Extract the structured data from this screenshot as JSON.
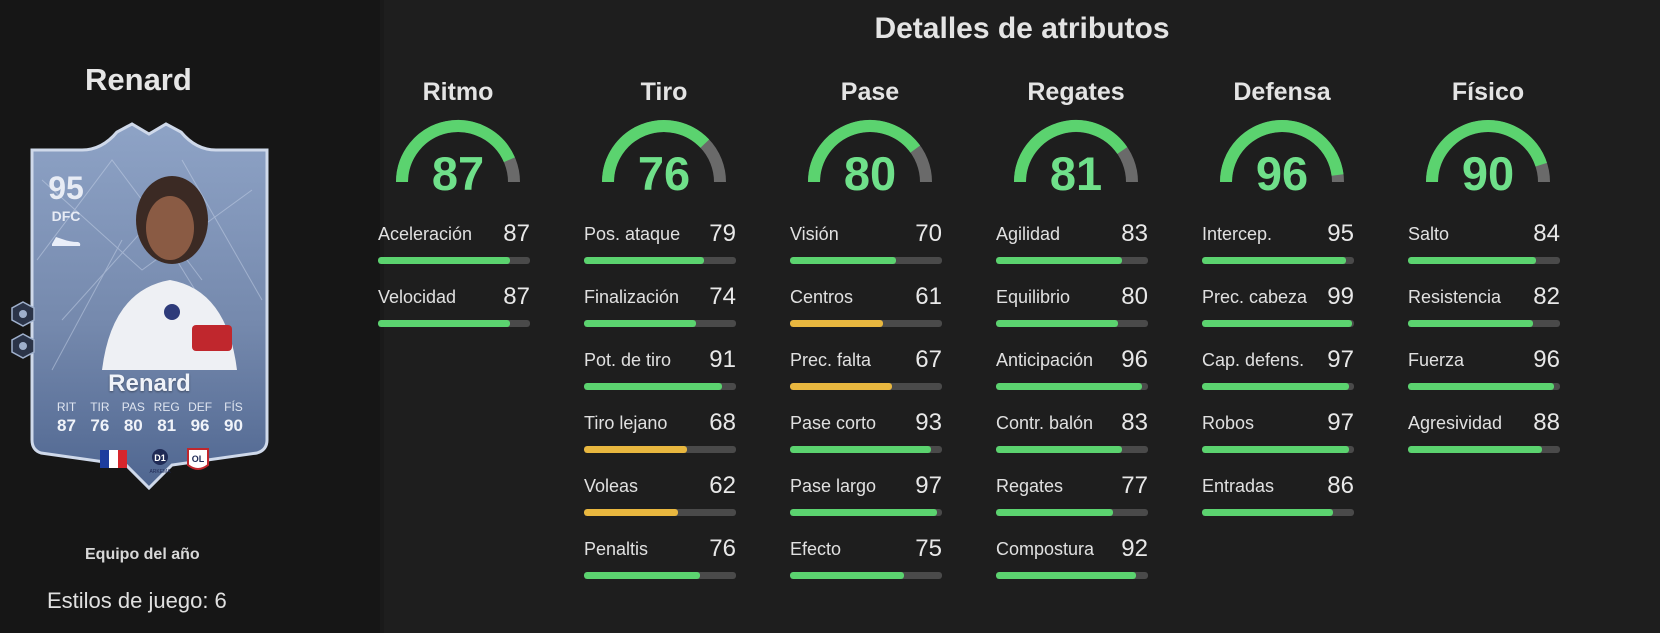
{
  "player": {
    "name": "Renard",
    "card": {
      "rating": "95",
      "position": "DFC",
      "name": "Renard",
      "stats": [
        {
          "label": "RIT",
          "value": "87"
        },
        {
          "label": "TIR",
          "value": "76"
        },
        {
          "label": "PAS",
          "value": "80"
        },
        {
          "label": "REG",
          "value": "81"
        },
        {
          "label": "DEF",
          "value": "96"
        },
        {
          "label": "FÍS",
          "value": "90"
        }
      ],
      "league_badge": "D1",
      "league_sub": "ARKEMA",
      "club_badge": "OL",
      "card_color": "#7d93b7"
    },
    "program": "Equipo del año",
    "playstyles": "Estilos de juego: 6"
  },
  "main_title": "Detalles de atributos",
  "colors": {
    "high": "#5bd36f",
    "mid": "#e8b73f",
    "track": "#4a4a4a"
  },
  "categories": [
    {
      "name": "Ritmo",
      "value": 87,
      "attributes": [
        {
          "name": "Aceleración",
          "value": 87
        },
        {
          "name": "Velocidad",
          "value": 87
        }
      ]
    },
    {
      "name": "Tiro",
      "value": 76,
      "attributes": [
        {
          "name": "Pos. ataque",
          "value": 79
        },
        {
          "name": "Finalización",
          "value": 74
        },
        {
          "name": "Pot. de tiro",
          "value": 91
        },
        {
          "name": "Tiro lejano",
          "value": 68
        },
        {
          "name": "Voleas",
          "value": 62
        },
        {
          "name": "Penaltis",
          "value": 76
        }
      ]
    },
    {
      "name": "Pase",
      "value": 80,
      "attributes": [
        {
          "name": "Visión",
          "value": 70
        },
        {
          "name": "Centros",
          "value": 61
        },
        {
          "name": "Prec. falta",
          "value": 67
        },
        {
          "name": "Pase corto",
          "value": 93
        },
        {
          "name": "Pase largo",
          "value": 97
        },
        {
          "name": "Efecto",
          "value": 75
        }
      ]
    },
    {
      "name": "Regates",
      "value": 81,
      "attributes": [
        {
          "name": "Agilidad",
          "value": 83
        },
        {
          "name": "Equilibrio",
          "value": 80
        },
        {
          "name": "Anticipación",
          "value": 96
        },
        {
          "name": "Contr. balón",
          "value": 83
        },
        {
          "name": "Regates",
          "value": 77
        },
        {
          "name": "Compostura",
          "value": 92
        }
      ]
    },
    {
      "name": "Defensa",
      "value": 96,
      "attributes": [
        {
          "name": "Intercep.",
          "value": 95
        },
        {
          "name": "Prec. cabeza",
          "value": 99
        },
        {
          "name": "Cap. defens.",
          "value": 97
        },
        {
          "name": "Robos",
          "value": 97
        },
        {
          "name": "Entradas",
          "value": 86
        }
      ]
    },
    {
      "name": "Físico",
      "value": 90,
      "attributes": [
        {
          "name": "Salto",
          "value": 84
        },
        {
          "name": "Resistencia",
          "value": 82
        },
        {
          "name": "Fuerza",
          "value": 96
        },
        {
          "name": "Agresividad",
          "value": 88
        }
      ]
    }
  ]
}
